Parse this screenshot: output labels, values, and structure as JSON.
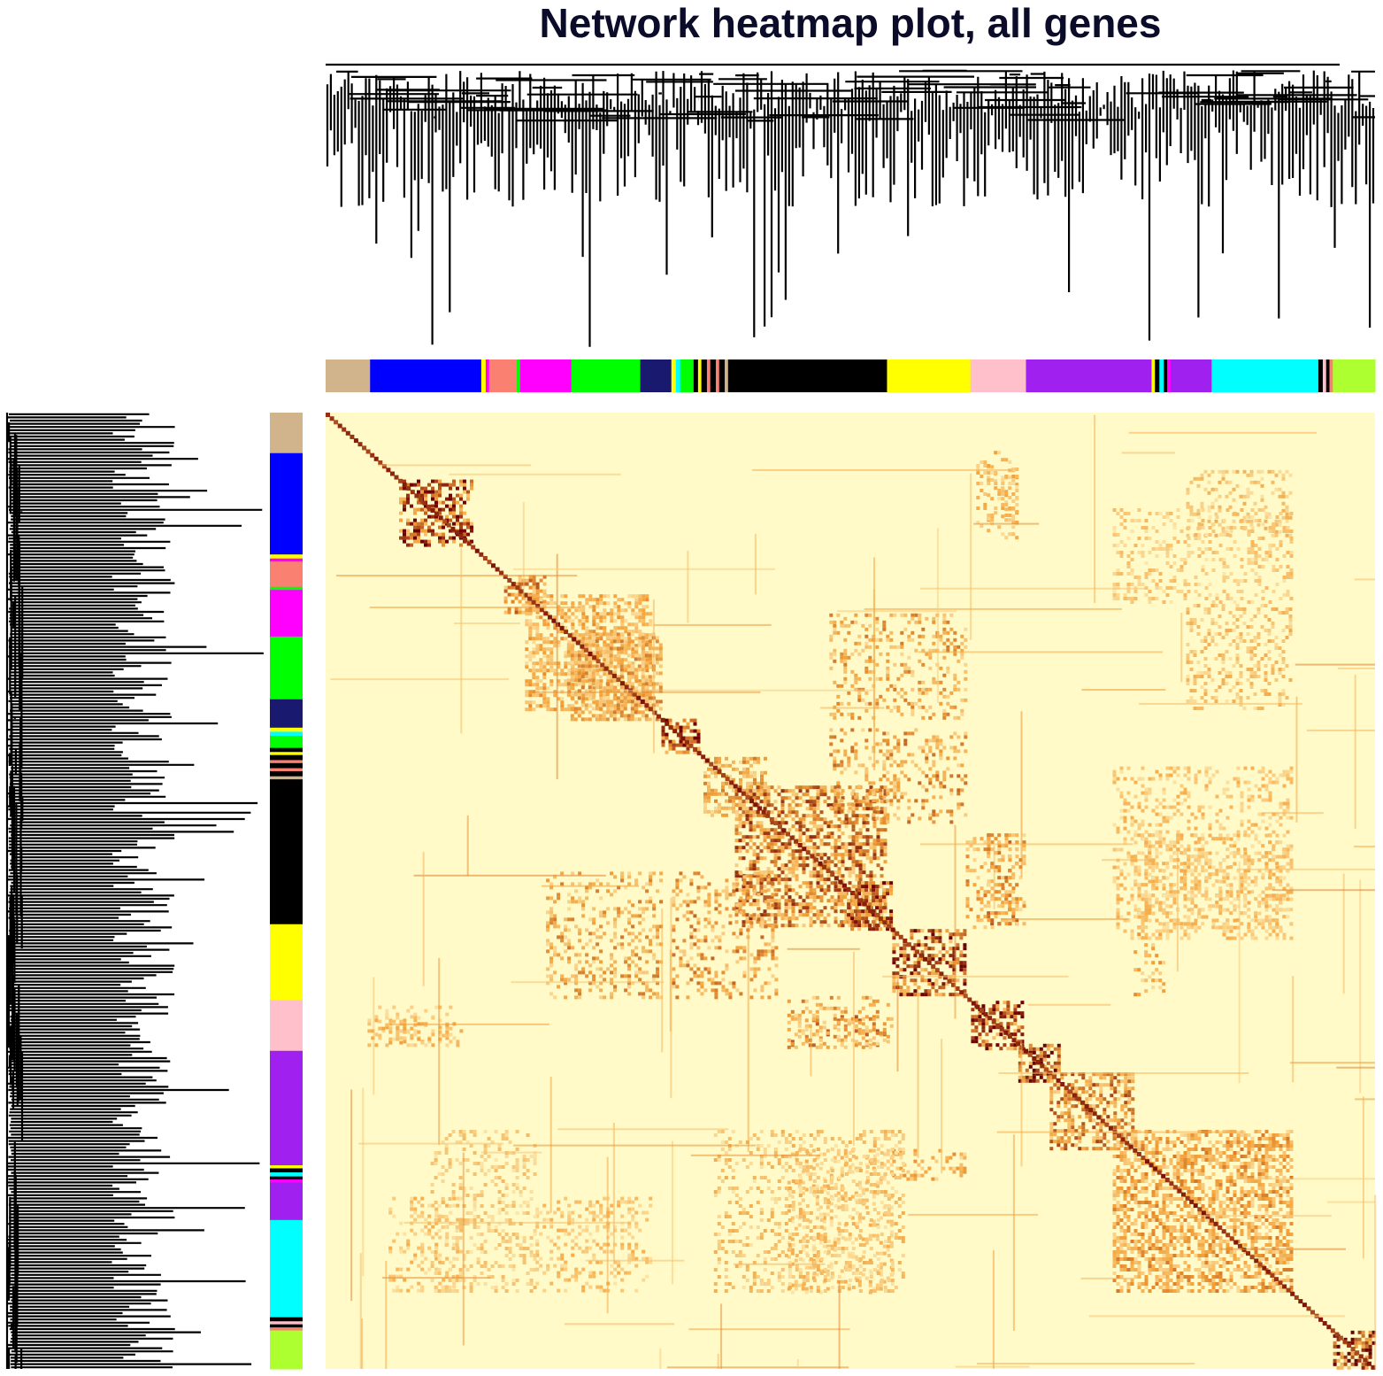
{
  "chart_data": {
    "type": "heatmap",
    "title": "Network heatmap plot, all genes",
    "xlabel": "",
    "ylabel": "",
    "legend": "none",
    "color_scale": {
      "low": "#fffac8",
      "mid": "#f2a13a",
      "high": "#6e0000"
    },
    "module_colors": [
      {
        "color": "#d2b48c",
        "size": 4
      },
      {
        "color": "#0000ff",
        "size": 10
      },
      {
        "color": "#ffff00",
        "size": 0.4
      },
      {
        "color": "#ff00ff",
        "size": 0.3
      },
      {
        "color": "#fa8072",
        "size": 2.5
      },
      {
        "color": "#00ff00",
        "size": 0.3
      },
      {
        "color": "#ff00ff",
        "size": 4.6
      },
      {
        "color": "#00ff00",
        "size": 6.2
      },
      {
        "color": "#191970",
        "size": 2.8
      },
      {
        "color": "#ffff00",
        "size": 0.4
      },
      {
        "color": "#00ffff",
        "size": 0.4
      },
      {
        "color": "#00ff00",
        "size": 1.2
      },
      {
        "color": "#000000",
        "size": 0.4
      },
      {
        "color": "#ffff00",
        "size": 0.3
      },
      {
        "color": "#000000",
        "size": 0.5
      },
      {
        "color": "#fa8072",
        "size": 0.3
      },
      {
        "color": "#000000",
        "size": 0.5
      },
      {
        "color": "#fa8072",
        "size": 0.3
      },
      {
        "color": "#000000",
        "size": 0.5
      },
      {
        "color": "#d2b48c",
        "size": 0.3
      },
      {
        "color": "#000000",
        "size": 14.3
      },
      {
        "color": "#ffff00",
        "size": 7.5
      },
      {
        "color": "#ffc0cb",
        "size": 5
      },
      {
        "color": "#a020f0",
        "size": 11.3
      },
      {
        "color": "#ffff00",
        "size": 0.3
      },
      {
        "color": "#000000",
        "size": 0.4
      },
      {
        "color": "#00ffff",
        "size": 0.4
      },
      {
        "color": "#000000",
        "size": 0.3
      },
      {
        "color": "#ff00ff",
        "size": 0.3
      },
      {
        "color": "#a020f0",
        "size": 3.7
      },
      {
        "color": "#00ffff",
        "size": 9.6
      },
      {
        "color": "#000000",
        "size": 0.4
      },
      {
        "color": "#ffc0cb",
        "size": 0.3
      },
      {
        "color": "#000000",
        "size": 0.3
      },
      {
        "color": "#fa8072",
        "size": 0.3
      },
      {
        "color": "#adff2f",
        "size": 3.8
      }
    ],
    "dense_blocks": [
      {
        "from": 0.07,
        "to": 0.14,
        "value": 0.9
      },
      {
        "from": 0.17,
        "to": 0.21,
        "value": 0.6
      },
      {
        "from": 0.19,
        "to": 0.31,
        "value": 0.45
      },
      {
        "from": 0.23,
        "to": 0.32,
        "value": 0.5
      },
      {
        "from": 0.32,
        "to": 0.355,
        "value": 0.9
      },
      {
        "from": 0.36,
        "to": 0.42,
        "value": 0.5
      },
      {
        "from": 0.39,
        "to": 0.535,
        "value": 0.7
      },
      {
        "from": 0.49,
        "to": 0.54,
        "value": 0.85
      },
      {
        "from": 0.54,
        "to": 0.61,
        "value": 0.85
      },
      {
        "from": 0.615,
        "to": 0.665,
        "value": 0.9
      },
      {
        "from": 0.66,
        "to": 0.7,
        "value": 0.9
      },
      {
        "from": 0.69,
        "to": 0.77,
        "value": 0.65
      },
      {
        "from": 0.75,
        "to": 0.92,
        "value": 0.5
      },
      {
        "from": 0.96,
        "to": 1.0,
        "value": 0.9
      }
    ],
    "off_blocks": [
      {
        "rows": [
          0.04,
          0.13
        ],
        "cols": [
          0.63,
          0.66
        ],
        "value": 0.4
      },
      {
        "rows": [
          0.21,
          0.32
        ],
        "cols": [
          0.48,
          0.61
        ],
        "value": 0.5
      },
      {
        "rows": [
          0.33,
          0.43
        ],
        "cols": [
          0.48,
          0.61
        ],
        "value": 0.55
      },
      {
        "rows": [
          0.44,
          0.54
        ],
        "cols": [
          0.63,
          0.66
        ],
        "value": 0.6
      },
      {
        "rows": [
          0.44,
          0.54
        ],
        "cols": [
          0.77,
          0.92
        ],
        "value": 0.35
      },
      {
        "rows": [
          0.54,
          0.61
        ],
        "cols": [
          0.77,
          0.8
        ],
        "value": 0.45
      },
      {
        "rows": [
          0.61,
          0.665
        ],
        "cols": [
          0.44,
          0.54
        ],
        "value": 0.5
      },
      {
        "rows": [
          0.06,
          0.13
        ],
        "cols": [
          0.82,
          0.92
        ],
        "value": 0.35
      },
      {
        "rows": [
          0.2,
          0.31
        ],
        "cols": [
          0.82,
          0.92
        ],
        "value": 0.35
      },
      {
        "rows": [
          0.75,
          0.92
        ],
        "cols": [
          0.1,
          0.2
        ],
        "value": 0.3
      },
      {
        "rows": [
          0.75,
          0.92
        ],
        "cols": [
          0.37,
          0.55
        ],
        "value": 0.35
      },
      {
        "rows": [
          0.62,
          0.66
        ],
        "cols": [
          0.05,
          0.12
        ],
        "value": 0.4
      }
    ]
  }
}
